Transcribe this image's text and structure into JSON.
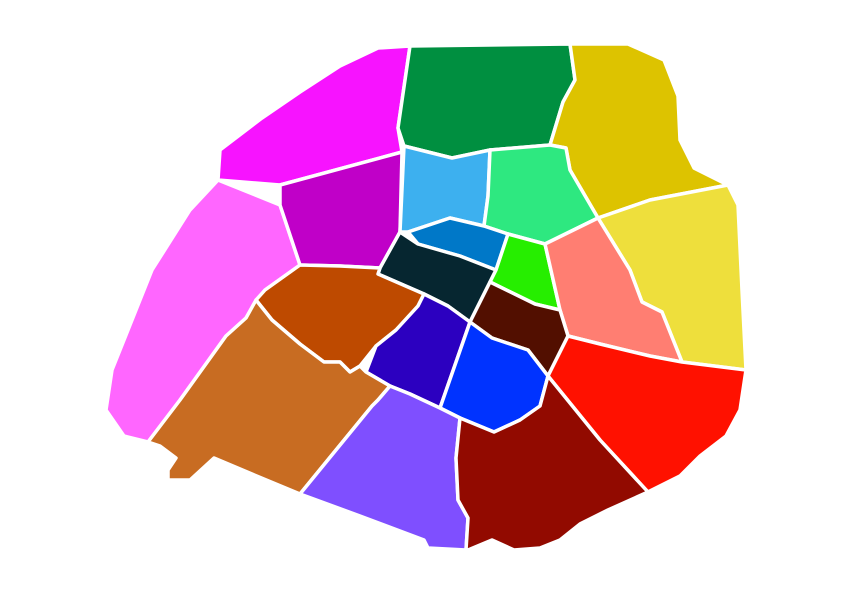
{
  "map": {
    "background": "#ffffff",
    "border_color": "#ffffff",
    "districts": [
      {
        "id": "d1",
        "color": "#0078C8"
      },
      {
        "id": "d2",
        "color": "#26EE00"
      },
      {
        "id": "d3",
        "color": "#2EE880"
      },
      {
        "id": "d4",
        "color": "#520F00"
      },
      {
        "id": "d5",
        "color": "#0033FF"
      },
      {
        "id": "d6",
        "color": "#2C00C0"
      },
      {
        "id": "d7",
        "color": "#BE4A00"
      },
      {
        "id": "d8",
        "color": "#FF66FF"
      },
      {
        "id": "d9",
        "color": "#3DB0EF"
      },
      {
        "id": "d10",
        "color": "#008F40"
      },
      {
        "id": "d11",
        "color": "#FF7E72"
      },
      {
        "id": "d12",
        "color": "#FF1100"
      },
      {
        "id": "d13",
        "color": "#920A00"
      },
      {
        "id": "d14",
        "color": "#7F4FFF"
      },
      {
        "id": "d15",
        "color": "#C86C22"
      },
      {
        "id": "d16",
        "color": "#FF66FF"
      },
      {
        "id": "d17",
        "color": "#F713FF"
      },
      {
        "id": "d18",
        "color": "#008F40"
      },
      {
        "id": "d19",
        "color": "#DDC300"
      },
      {
        "id": "d20",
        "color": "#EEDF3C"
      },
      {
        "id": "d0",
        "color": "#062630"
      },
      {
        "id": "d8b",
        "color": "#C000C8"
      }
    ]
  }
}
